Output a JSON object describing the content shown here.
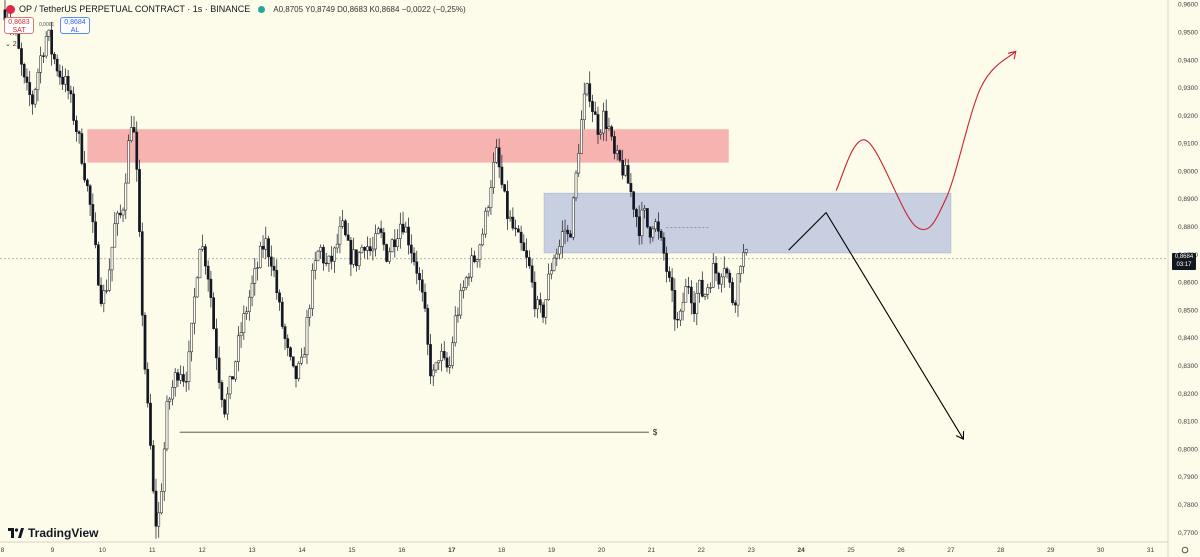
{
  "header": {
    "symbol": "OP / TetherUS PERPETUAL CONTRACT · 1s · BINANCE",
    "ohlc": "A0,8705  Y0,8749  D0,8683  K0,8684  −0,0022 (−0,25%)"
  },
  "trade": {
    "sell_price": "0,8683",
    "sell_label": "SAT",
    "spread": "0,0001",
    "buy_price": "0,8684",
    "buy_label": "AL"
  },
  "indicators_toggle": "⌄ 2",
  "logo_text": "TradingView",
  "price_tag": {
    "price": "0,8684",
    "countdown": "03:17"
  },
  "colors": {
    "background": "#fdfbea",
    "candles": "#131722",
    "supply_zone": "#f4a6a6",
    "demand_zone": "#b9c3dd",
    "red_path": "#cc1f2e",
    "black_path": "#000000"
  },
  "chart_data": {
    "type": "line",
    "ylim": [
      0.7665,
      0.9615
    ],
    "xlim": [
      7.95,
      31.35
    ],
    "y_ticks": [
      "0,9600",
      "0,9500",
      "0,9400",
      "0,9300",
      "0,9200",
      "0,9100",
      "0,9000",
      "0,8900",
      "0,8800",
      "0,8700",
      "0,8600",
      "0,8500",
      "0,8400",
      "0,8300",
      "0,8200",
      "0,8100",
      "0,8000",
      "0,7900",
      "0,7800",
      "0,7700"
    ],
    "x_ticks": [
      {
        "x": 8,
        "label": "8",
        "bold": false
      },
      {
        "x": 9,
        "label": "9",
        "bold": false
      },
      {
        "x": 10,
        "label": "10",
        "bold": false
      },
      {
        "x": 11,
        "label": "11",
        "bold": false
      },
      {
        "x": 12,
        "label": "12",
        "bold": false
      },
      {
        "x": 13,
        "label": "13",
        "bold": false
      },
      {
        "x": 14,
        "label": "14",
        "bold": false
      },
      {
        "x": 15,
        "label": "15",
        "bold": false
      },
      {
        "x": 16,
        "label": "16",
        "bold": false
      },
      {
        "x": 17,
        "label": "17",
        "bold": true
      },
      {
        "x": 18,
        "label": "18",
        "bold": false
      },
      {
        "x": 19,
        "label": "19",
        "bold": false
      },
      {
        "x": 20,
        "label": "20",
        "bold": false
      },
      {
        "x": 21,
        "label": "21",
        "bold": false
      },
      {
        "x": 22,
        "label": "22",
        "bold": false
      },
      {
        "x": 23,
        "label": "23",
        "bold": false
      },
      {
        "x": 24,
        "label": "24",
        "bold": true
      },
      {
        "x": 25,
        "label": "25",
        "bold": false
      },
      {
        "x": 26,
        "label": "26",
        "bold": false
      },
      {
        "x": 27,
        "label": "27",
        "bold": false
      },
      {
        "x": 28,
        "label": "28",
        "bold": false
      },
      {
        "x": 29,
        "label": "29",
        "bold": false
      },
      {
        "x": 30,
        "label": "30",
        "bold": false
      },
      {
        "x": 31,
        "label": "31",
        "bold": false
      }
    ],
    "current_price": 0.8684,
    "price_path": [
      [
        8.05,
        0.958
      ],
      [
        8.25,
        0.95
      ],
      [
        8.45,
        0.93
      ],
      [
        8.6,
        0.925
      ],
      [
        8.75,
        0.94
      ],
      [
        8.9,
        0.95
      ],
      [
        9.0,
        0.942
      ],
      [
        9.15,
        0.935
      ],
      [
        9.3,
        0.93
      ],
      [
        9.45,
        0.918
      ],
      [
        9.6,
        0.905
      ],
      [
        9.75,
        0.888
      ],
      [
        9.9,
        0.865
      ],
      [
        10.0,
        0.853
      ],
      [
        10.1,
        0.86
      ],
      [
        10.25,
        0.88
      ],
      [
        10.4,
        0.885
      ],
      [
        10.5,
        0.905
      ],
      [
        10.6,
        0.922
      ],
      [
        10.7,
        0.895
      ],
      [
        10.8,
        0.85
      ],
      [
        10.88,
        0.82
      ],
      [
        10.95,
        0.805
      ],
      [
        11.03,
        0.78
      ],
      [
        11.1,
        0.77
      ],
      [
        11.2,
        0.79
      ],
      [
        11.3,
        0.815
      ],
      [
        11.45,
        0.825
      ],
      [
        11.55,
        0.83
      ],
      [
        11.65,
        0.825
      ],
      [
        11.75,
        0.833
      ],
      [
        11.85,
        0.855
      ],
      [
        11.95,
        0.875
      ],
      [
        12.05,
        0.87
      ],
      [
        12.15,
        0.86
      ],
      [
        12.25,
        0.84
      ],
      [
        12.35,
        0.825
      ],
      [
        12.45,
        0.815
      ],
      [
        12.6,
        0.825
      ],
      [
        12.75,
        0.84
      ],
      [
        12.95,
        0.855
      ],
      [
        13.1,
        0.865
      ],
      [
        13.25,
        0.875
      ],
      [
        13.4,
        0.868
      ],
      [
        13.55,
        0.85
      ],
      [
        13.7,
        0.835
      ],
      [
        13.85,
        0.825
      ],
      [
        14.0,
        0.83
      ],
      [
        14.1,
        0.845
      ],
      [
        14.2,
        0.86
      ],
      [
        14.35,
        0.873
      ],
      [
        14.5,
        0.865
      ],
      [
        14.65,
        0.87
      ],
      [
        14.8,
        0.88
      ],
      [
        14.95,
        0.87
      ],
      [
        15.1,
        0.868
      ],
      [
        15.25,
        0.875
      ],
      [
        15.4,
        0.87
      ],
      [
        15.55,
        0.878
      ],
      [
        15.7,
        0.87
      ],
      [
        15.85,
        0.876
      ],
      [
        16.0,
        0.883
      ],
      [
        16.15,
        0.875
      ],
      [
        16.3,
        0.865
      ],
      [
        16.45,
        0.85
      ],
      [
        16.55,
        0.83
      ],
      [
        16.65,
        0.825
      ],
      [
        16.75,
        0.835
      ],
      [
        16.85,
        0.83
      ],
      [
        16.95,
        0.828
      ],
      [
        17.05,
        0.845
      ],
      [
        17.2,
        0.855
      ],
      [
        17.35,
        0.865
      ],
      [
        17.5,
        0.87
      ],
      [
        17.65,
        0.88
      ],
      [
        17.8,
        0.898
      ],
      [
        17.9,
        0.906
      ],
      [
        18.0,
        0.895
      ],
      [
        18.1,
        0.885
      ],
      [
        18.25,
        0.878
      ],
      [
        18.4,
        0.872
      ],
      [
        18.55,
        0.865
      ],
      [
        18.65,
        0.855
      ],
      [
        18.75,
        0.848
      ],
      [
        18.85,
        0.85
      ],
      [
        18.95,
        0.862
      ],
      [
        19.05,
        0.87
      ],
      [
        19.15,
        0.872
      ],
      [
        19.25,
        0.88
      ],
      [
        19.35,
        0.875
      ],
      [
        19.45,
        0.89
      ],
      [
        19.55,
        0.91
      ],
      [
        19.65,
        0.925
      ],
      [
        19.75,
        0.93
      ],
      [
        19.85,
        0.92
      ],
      [
        19.95,
        0.915
      ],
      [
        20.05,
        0.92
      ],
      [
        20.15,
        0.915
      ],
      [
        20.25,
        0.905
      ],
      [
        20.4,
        0.902
      ],
      [
        20.55,
        0.895
      ],
      [
        20.65,
        0.888
      ],
      [
        20.75,
        0.88
      ],
      [
        20.85,
        0.885
      ],
      [
        20.95,
        0.878
      ],
      [
        21.05,
        0.883
      ],
      [
        21.15,
        0.876
      ],
      [
        21.25,
        0.87
      ],
      [
        21.35,
        0.86
      ],
      [
        21.45,
        0.85
      ],
      [
        21.55,
        0.843
      ],
      [
        21.65,
        0.855
      ],
      [
        21.75,
        0.86
      ],
      [
        21.85,
        0.852
      ],
      [
        21.95,
        0.858
      ],
      [
        22.05,
        0.855
      ],
      [
        22.15,
        0.86
      ],
      [
        22.25,
        0.865
      ],
      [
        22.35,
        0.862
      ],
      [
        22.45,
        0.868
      ],
      [
        22.55,
        0.86
      ],
      [
        22.65,
        0.852
      ],
      [
        22.72,
        0.86
      ],
      [
        22.8,
        0.87
      ],
      [
        22.9,
        0.8684
      ]
    ],
    "zones": [
      {
        "name": "supply",
        "x0": 9.7,
        "x1": 22.55,
        "y0": 0.903,
        "y1": 0.915
      },
      {
        "name": "demand",
        "x0": 18.85,
        "x1": 27.0,
        "y0": 0.8705,
        "y1": 0.892
      }
    ],
    "liquidity_level": {
      "x0": 11.55,
      "x1": 20.95,
      "y": 0.806,
      "label": "$"
    },
    "dotted_level": {
      "x0": 21.3,
      "x1": 22.15,
      "y": 0.8797
    },
    "projection_black": [
      [
        23.75,
        0.8715
      ],
      [
        24.5,
        0.885
      ],
      [
        27.25,
        0.8035
      ]
    ],
    "projection_red": [
      [
        24.7,
        0.893
      ],
      [
        25.3,
        0.911
      ],
      [
        26.3,
        0.88
      ],
      [
        26.9,
        0.89
      ],
      [
        27.6,
        0.93
      ],
      [
        28.3,
        0.943
      ]
    ]
  }
}
